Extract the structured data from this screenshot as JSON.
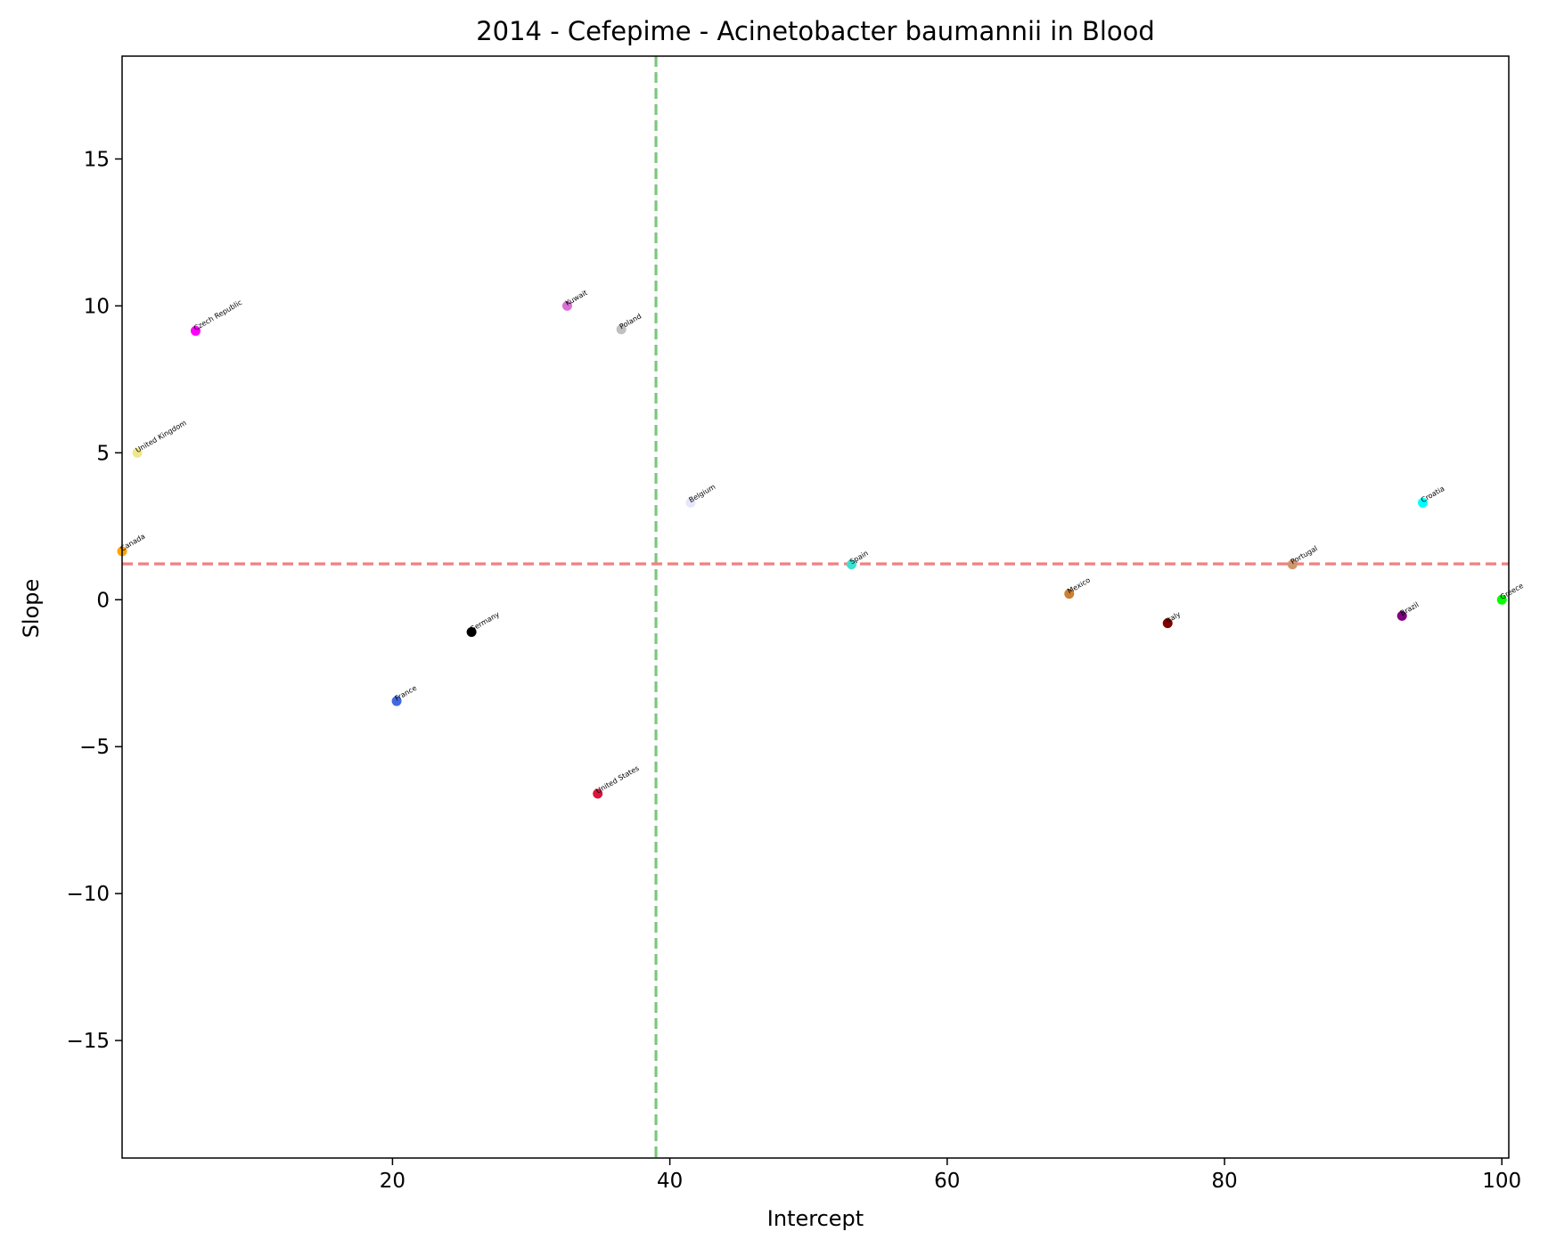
{
  "chart_data": {
    "type": "scatter",
    "title": "2014 - Cefepime - Acinetobacter baumannii in Blood",
    "xlabel": "Intercept",
    "ylabel": "Slope",
    "xlim": [
      0.5,
      100.5
    ],
    "ylim": [
      -19,
      18.5
    ],
    "xticks": [
      20,
      40,
      60,
      80,
      100
    ],
    "yticks": [
      -15,
      -10,
      -5,
      0,
      5,
      10,
      15
    ],
    "xtick_labels": [
      "20",
      "40",
      "60",
      "80",
      "100"
    ],
    "ytick_labels": [
      "−15",
      "−10",
      "−5",
      "0",
      "5",
      "10",
      "15"
    ],
    "grid": false,
    "reference_lines": {
      "vertical": {
        "x": 39,
        "color": "#7dc77d"
      },
      "horizontal": {
        "y": 1.22,
        "color": "#f08080"
      }
    },
    "points": [
      {
        "label": "Canada",
        "x": 0.5,
        "y": 1.65,
        "color": "#ffa500"
      },
      {
        "label": "United Kingdom",
        "x": 1.6,
        "y": 5.0,
        "color": "#f0e68c"
      },
      {
        "label": "Czech Republic",
        "x": 5.8,
        "y": 9.15,
        "color": "#ff00ff"
      },
      {
        "label": "France",
        "x": 20.3,
        "y": -3.45,
        "color": "#4169e1"
      },
      {
        "label": "Germany",
        "x": 25.7,
        "y": -1.1,
        "color": "#000000"
      },
      {
        "label": "Kuwait",
        "x": 32.6,
        "y": 10.0,
        "color": "#da70d6"
      },
      {
        "label": "United States",
        "x": 34.8,
        "y": -6.6,
        "color": "#dc143c"
      },
      {
        "label": "Poland",
        "x": 36.5,
        "y": 9.2,
        "color": "#c0c0c0"
      },
      {
        "label": "Belgium",
        "x": 41.5,
        "y": 3.3,
        "color": "#e6e6fa"
      },
      {
        "label": "Spain",
        "x": 53.1,
        "y": 1.2,
        "color": "#40e0d0"
      },
      {
        "label": "Mexico",
        "x": 68.8,
        "y": 0.2,
        "color": "#cd7f32"
      },
      {
        "label": "Italy",
        "x": 75.9,
        "y": -0.8,
        "color": "#800000"
      },
      {
        "label": "Portugal",
        "x": 84.9,
        "y": 1.2,
        "color": "#d2956b"
      },
      {
        "label": "Brazil",
        "x": 92.8,
        "y": -0.55,
        "color": "#800080"
      },
      {
        "label": "Croatia",
        "x": 94.3,
        "y": 3.3,
        "color": "#00ffff"
      },
      {
        "label": "Greece",
        "x": 100.0,
        "y": 0.0,
        "color": "#00ff00"
      }
    ]
  }
}
